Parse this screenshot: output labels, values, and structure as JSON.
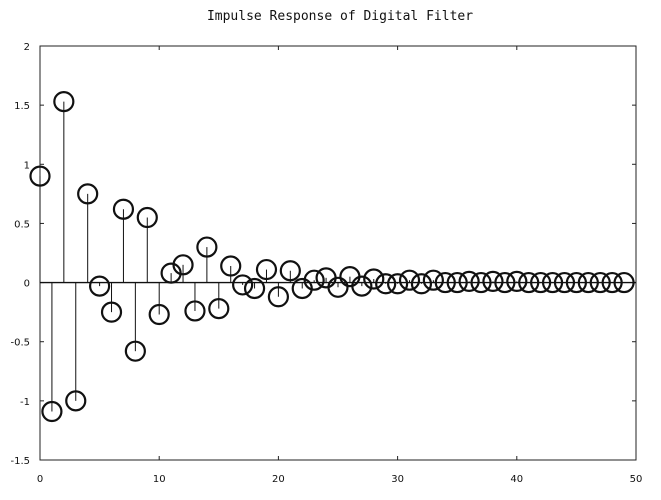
{
  "chart_data": {
    "type": "stem",
    "title": "Impulse Response of Digital Filter",
    "xlabel": "",
    "ylabel": "",
    "xlim": [
      0,
      50
    ],
    "ylim": [
      -1.5,
      2
    ],
    "xticks": [
      0,
      10,
      20,
      30,
      40,
      50
    ],
    "yticks": [
      -1.5,
      -1,
      -0.5,
      0,
      0.5,
      1,
      1.5,
      2
    ],
    "xtick_labels": [
      "0",
      "10",
      "20",
      "30",
      "40",
      "50"
    ],
    "ytick_labels": [
      "-1.5",
      "-1",
      "-0.5",
      "0",
      "0.5",
      "1",
      "1.5",
      "2"
    ],
    "grid": false,
    "series": [
      {
        "x": [
          0,
          1,
          2,
          3,
          4,
          5,
          6,
          7,
          8,
          9,
          10,
          11,
          12,
          13,
          14,
          15,
          16,
          17,
          18,
          19,
          20,
          21,
          22,
          23,
          24,
          25,
          26,
          27,
          28,
          29,
          30,
          31,
          32,
          33,
          34,
          35,
          36,
          37,
          38,
          39,
          40,
          41,
          42,
          43,
          44,
          45,
          46,
          47,
          48,
          49
        ],
        "values": [
          0.9,
          -1.09,
          1.53,
          -1.0,
          0.75,
          -0.03,
          -0.25,
          0.62,
          -0.58,
          0.55,
          -0.27,
          0.08,
          0.15,
          -0.24,
          0.3,
          -0.22,
          0.14,
          -0.02,
          -0.05,
          0.11,
          -0.12,
          0.1,
          -0.05,
          0.02,
          0.04,
          -0.04,
          0.05,
          -0.03,
          0.03,
          -0.01,
          -0.01,
          0.02,
          -0.01,
          0.02,
          0.0,
          0.0,
          0.01,
          0.0,
          0.01,
          0.0,
          0.01,
          0.0,
          0.0,
          0.0,
          0.0,
          0.0,
          0.0,
          0.0,
          0.0,
          0.0
        ]
      }
    ]
  }
}
